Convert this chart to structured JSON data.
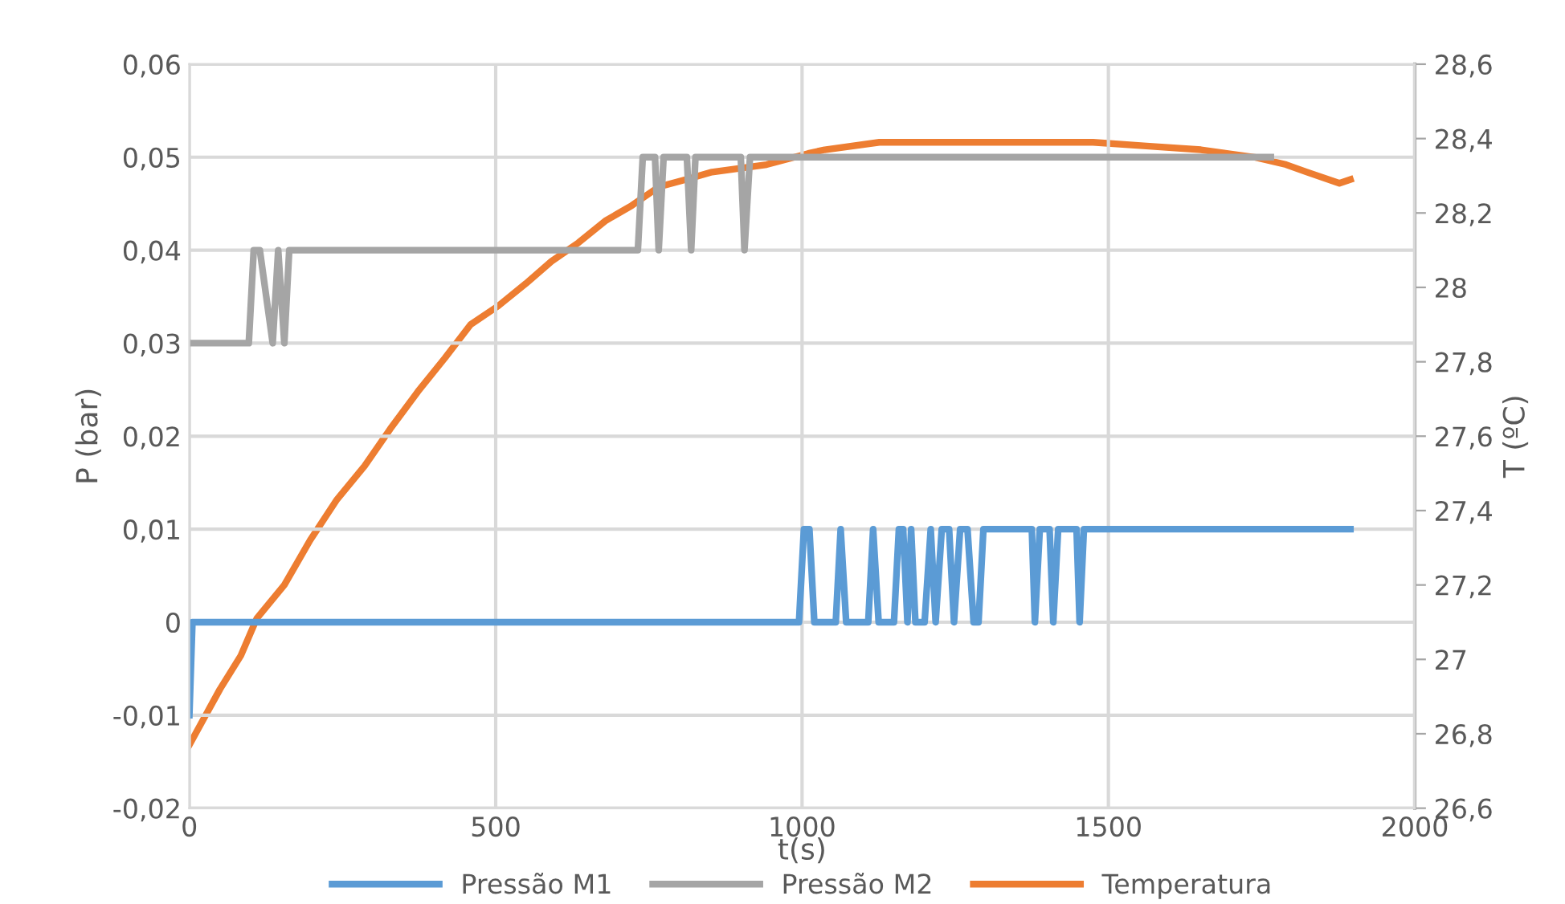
{
  "chart_data": {
    "type": "line",
    "xlabel": "t(s)",
    "ylabel": "P (bar)",
    "y2label": "T (ºC)",
    "xlim": [
      0,
      2000
    ],
    "xticks": [
      0,
      500,
      1000,
      1500,
      2000
    ],
    "ylim": [
      -0.02,
      0.06
    ],
    "yticks": [
      {
        "value": -0.02,
        "label": "-0,02"
      },
      {
        "value": -0.01,
        "label": "-0,01"
      },
      {
        "value": 0,
        "label": "0"
      },
      {
        "value": 0.01,
        "label": "0,01"
      },
      {
        "value": 0.02,
        "label": "0,02"
      },
      {
        "value": 0.03,
        "label": "0,03"
      },
      {
        "value": 0.04,
        "label": "0,04"
      },
      {
        "value": 0.05,
        "label": "0,05"
      },
      {
        "value": 0.06,
        "label": "0,06"
      }
    ],
    "y2lim": [
      26.6,
      28.6
    ],
    "y2ticks": [
      {
        "value": 26.6,
        "label": "26,6"
      },
      {
        "value": 26.8,
        "label": "26,8"
      },
      {
        "value": 27,
        "label": "27"
      },
      {
        "value": 27.2,
        "label": "27,2"
      },
      {
        "value": 27.4,
        "label": "27,4"
      },
      {
        "value": 27.6,
        "label": "27,6"
      },
      {
        "value": 27.8,
        "label": "27,8"
      },
      {
        "value": 28,
        "label": "28"
      },
      {
        "value": 28.2,
        "label": "28,2"
      },
      {
        "value": 28.4,
        "label": "28,4"
      },
      {
        "value": 28.6,
        "label": "28,6"
      }
    ],
    "grid": true,
    "legend": "bottom",
    "marker": "none",
    "line_style": "solid",
    "series": [
      {
        "name": "Pressão M1",
        "color": "#5b9bd5",
        "x": [
          0,
          5,
          995,
          1003,
          1012,
          1020,
          1055,
          1063,
          1072,
          1108,
          1116,
          1125,
          1150,
          1158,
          1165,
          1172,
          1178,
          1185,
          1200,
          1210,
          1218,
          1228,
          1240,
          1248,
          1258,
          1270,
          1280,
          1288,
          1296,
          1375,
          1380,
          1388,
          1404,
          1410,
          1418,
          1448,
          1453,
          1460,
          1895
        ],
        "values": [
          -0.01,
          0,
          0,
          0.01,
          0.01,
          0,
          0,
          0.01,
          0,
          0,
          0.01,
          0,
          0,
          0.01,
          0.01,
          0,
          0.01,
          0,
          0,
          0.01,
          0,
          0.01,
          0.01,
          0,
          0.01,
          0.01,
          0,
          0,
          0.01,
          0.01,
          0,
          0.01,
          0.01,
          0,
          0.01,
          0.01,
          0,
          0.01,
          0.01
        ]
      },
      {
        "name": "Pressão M2",
        "color": "#a5a5a5",
        "x": [
          0,
          97,
          105,
          115,
          136,
          145,
          155,
          163,
          732,
          740,
          760,
          766,
          774,
          812,
          819,
          826,
          900,
          906,
          915,
          1765
        ],
        "values": [
          0.03,
          0.03,
          0.04,
          0.04,
          0.03,
          0.04,
          0.03,
          0.04,
          0.04,
          0.05,
          0.05,
          0.04,
          0.05,
          0.05,
          0.04,
          0.05,
          0.05,
          0.04,
          0.05,
          0.05
        ]
      },
      {
        "name": "Temperatura",
        "color": "#ed7d31",
        "axis": "y2",
        "x": [
          0,
          20,
          50,
          84,
          110,
          155,
          197,
          241,
          286,
          328,
          373,
          417,
          459,
          504,
          549,
          591,
          635,
          680,
          722,
          766,
          811,
          853,
          942,
          1010,
          1037,
          1126,
          1299,
          1475,
          1562,
          1651,
          1738,
          1790,
          1824,
          1877,
          1895
        ],
        "values": [
          26.77,
          26.83,
          26.92,
          27.01,
          27.11,
          27.2,
          27.32,
          27.43,
          27.52,
          27.62,
          27.72,
          27.81,
          27.9,
          27.95,
          28.01,
          28.07,
          28.12,
          28.18,
          28.22,
          28.27,
          28.29,
          28.31,
          28.33,
          28.36,
          28.37,
          28.39,
          28.39,
          28.39,
          28.38,
          28.37,
          28.35,
          28.33,
          28.31,
          28.28,
          28.29
        ]
      }
    ]
  }
}
